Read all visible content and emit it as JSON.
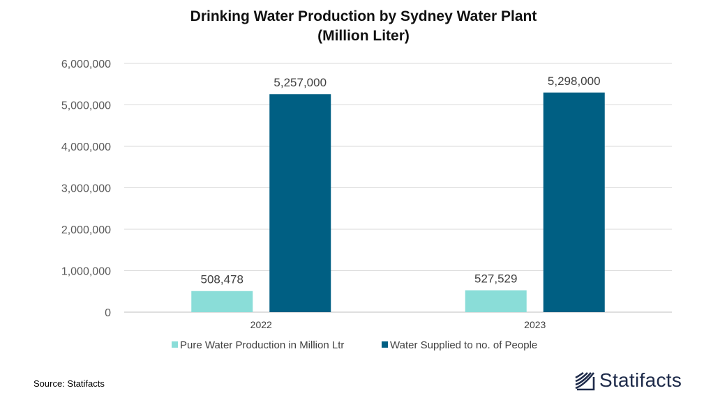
{
  "chart_data": {
    "type": "bar",
    "title_line1": "Drinking Water Production by Sydney Water Plant",
    "title_line2": "(Million Liter)",
    "categories": [
      "2022",
      "2023"
    ],
    "series": [
      {
        "name": "Pure Water Production in Million Ltr",
        "values": [
          508478,
          527529
        ],
        "value_labels": [
          "508,478",
          "527,529"
        ],
        "color": "#8addd8"
      },
      {
        "name": "Water Supplied to no. of People",
        "values": [
          5257000,
          5298000
        ],
        "value_labels": [
          "5,257,000",
          "5,298,000"
        ],
        "color": "#005f83"
      }
    ],
    "ylim": [
      0,
      6000000
    ],
    "yticks": [
      0,
      1000000,
      2000000,
      3000000,
      4000000,
      5000000,
      6000000
    ],
    "ytick_labels": [
      "0",
      "1,000,000",
      "2,000,000",
      "3,000,000",
      "4,000,000",
      "5,000,000",
      "6,000,000"
    ],
    "grid": true,
    "legend_position": "bottom"
  },
  "source": "Source: Statifacts",
  "brand": {
    "name": "Statifacts",
    "logo_icon": "statifacts-logo-icon",
    "color": "#1e2b4a"
  }
}
